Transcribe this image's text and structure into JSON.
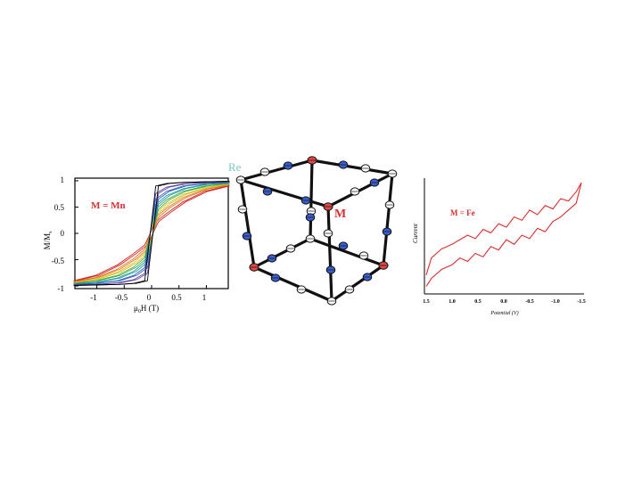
{
  "colors": {
    "accent_red": "#d93030",
    "re_label": "#7cc8c8",
    "atom_blue": "#3a5fd0",
    "atom_red": "#e04848"
  },
  "left_panel": {
    "label": "M = Mn",
    "ylabel": "M/M",
    "ylabel_sub": "s",
    "xlabel_pre": "μ",
    "xlabel_sub": "0",
    "xlabel_post": "H (T)",
    "xticks": [
      "-1",
      "-0.5",
      "0",
      "0.5",
      "1"
    ],
    "yticks": [
      "1",
      "0.5",
      "0",
      "-0.5",
      "-1"
    ]
  },
  "middle_panel": {
    "re_label": "Re",
    "m_label": "M"
  },
  "right_panel": {
    "label": "M = Fe",
    "ylabel": "Current",
    "xlabel": "Potential (V)",
    "xticks": [
      "1.5",
      "1.0",
      "0.5",
      "0.0",
      "-0.5",
      "-1.0",
      "-1.5"
    ]
  },
  "chart_data": [
    {
      "type": "line",
      "title": "M = Mn",
      "xlabel": "μ0H (T)",
      "ylabel": "M/Ms",
      "xlim": [
        -1.4,
        1.4
      ],
      "ylim": [
        -1.05,
        1.05
      ],
      "x": [
        -1.4,
        -1.0,
        -0.6,
        -0.3,
        -0.1,
        0.0,
        0.1,
        0.3,
        0.6,
        1.0,
        1.4
      ],
      "series": [
        {
          "color": "#d02020",
          "values": [
            -0.9,
            -0.8,
            -0.6,
            -0.38,
            -0.22,
            0.0,
            0.22,
            0.38,
            0.6,
            0.8,
            0.9
          ]
        },
        {
          "color": "#e07820",
          "values": [
            -0.92,
            -0.84,
            -0.68,
            -0.48,
            -0.3,
            0.0,
            0.3,
            0.48,
            0.68,
            0.84,
            0.92
          ]
        },
        {
          "color": "#d8c020",
          "values": [
            -0.94,
            -0.87,
            -0.74,
            -0.56,
            -0.38,
            0.0,
            0.38,
            0.56,
            0.74,
            0.87,
            0.94
          ]
        },
        {
          "color": "#40a840",
          "values": [
            -0.95,
            -0.9,
            -0.8,
            -0.64,
            -0.46,
            0.0,
            0.46,
            0.64,
            0.8,
            0.9,
            0.95
          ]
        },
        {
          "color": "#20a0a0",
          "values": [
            -0.96,
            -0.93,
            -0.85,
            -0.72,
            -0.55,
            0.0,
            0.55,
            0.72,
            0.85,
            0.93,
            0.96
          ]
        },
        {
          "color": "#3060c0",
          "values": [
            -0.97,
            -0.95,
            -0.9,
            -0.8,
            -0.65,
            0.0,
            0.65,
            0.8,
            0.9,
            0.95,
            0.97
          ]
        },
        {
          "color": "#6040a0",
          "values": [
            -0.98,
            -0.97,
            -0.94,
            -0.88,
            -0.76,
            0.0,
            0.76,
            0.88,
            0.94,
            0.97,
            0.98
          ]
        },
        {
          "color": "#000000",
          "values": [
            -0.99,
            -0.98,
            -0.97,
            -0.95,
            -0.9,
            0.0,
            0.9,
            0.95,
            0.97,
            0.98,
            0.99
          ]
        }
      ]
    },
    {
      "type": "line",
      "title": "M = Fe",
      "xlabel": "Potential (V)",
      "ylabel": "Current",
      "xlim": [
        1.5,
        -1.5
      ],
      "ylim": [
        0,
        1
      ],
      "series": [
        {
          "color": "#d93030",
          "x": [
            1.5,
            1.4,
            1.2,
            1.0,
            0.85,
            0.7,
            0.55,
            0.4,
            0.25,
            0.1,
            -0.05,
            -0.2,
            -0.35,
            -0.5,
            -0.65,
            -0.8,
            -0.95,
            -1.1,
            -1.25,
            -1.4,
            -1.5
          ],
          "values": [
            0.15,
            0.3,
            0.38,
            0.42,
            0.46,
            0.5,
            0.47,
            0.55,
            0.52,
            0.6,
            0.57,
            0.66,
            0.63,
            0.72,
            0.68,
            0.76,
            0.73,
            0.82,
            0.8,
            0.88,
            0.96
          ]
        },
        {
          "color": "#d93030",
          "x": [
            1.5,
            1.4,
            1.2,
            1.0,
            0.85,
            0.7,
            0.55,
            0.4,
            0.25,
            0.1,
            -0.05,
            -0.2,
            -0.35,
            -0.5,
            -0.65,
            -0.8,
            -0.95,
            -1.1,
            -1.25,
            -1.4,
            -1.5
          ],
          "values": [
            0.05,
            0.12,
            0.2,
            0.24,
            0.3,
            0.27,
            0.34,
            0.31,
            0.4,
            0.37,
            0.46,
            0.42,
            0.5,
            0.47,
            0.56,
            0.53,
            0.62,
            0.66,
            0.72,
            0.78,
            0.96
          ]
        }
      ]
    }
  ]
}
